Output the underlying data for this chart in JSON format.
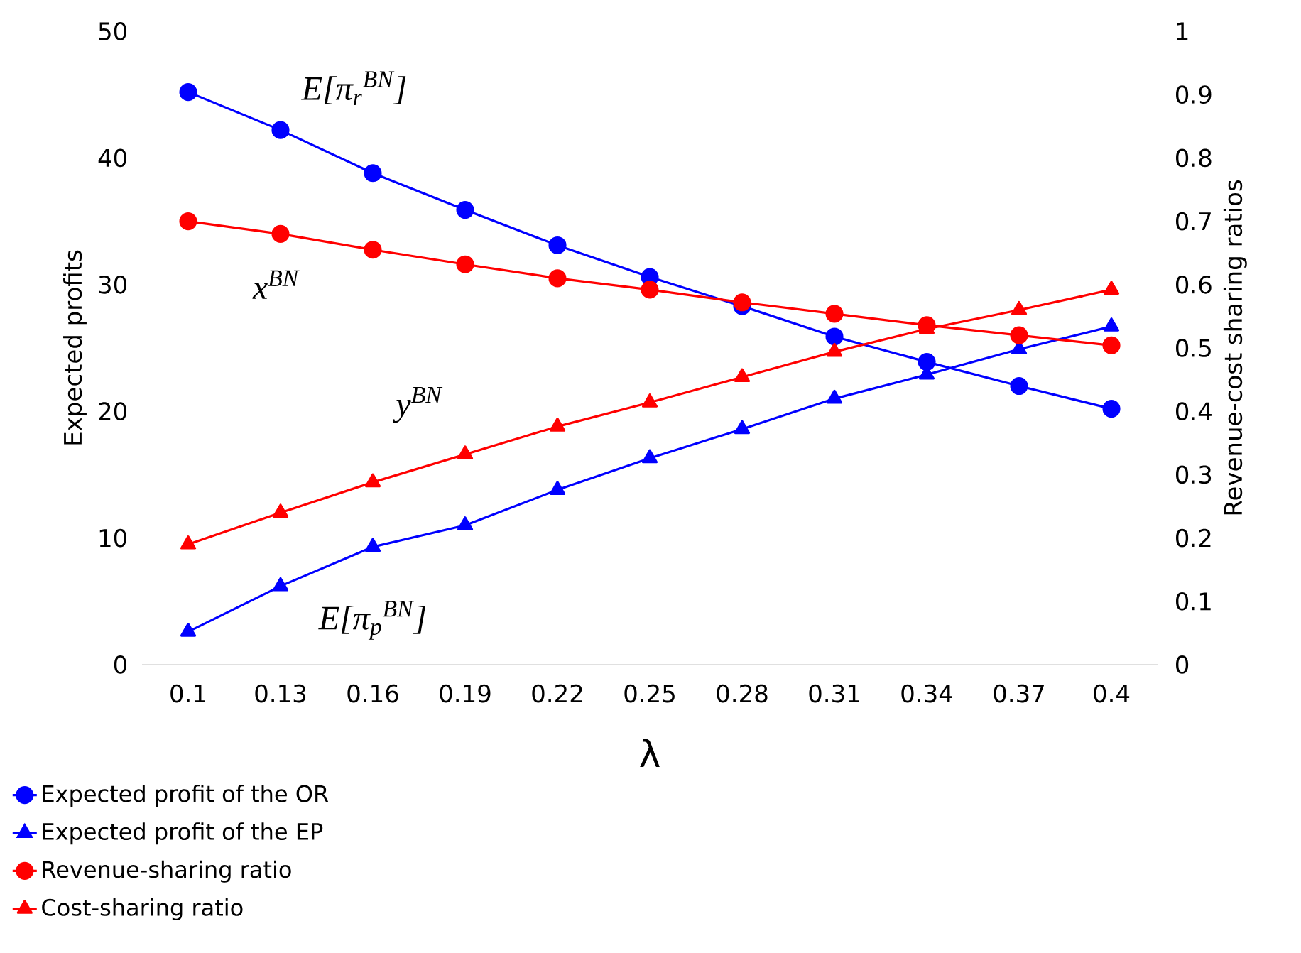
{
  "chart_data": {
    "type": "line",
    "xlabel": "λ",
    "ylabel": "Expected profits",
    "y2label": "Revenue-cost sharing ratios",
    "categories": [
      "0.1",
      "0.13",
      "0.16",
      "0.19",
      "0.22",
      "0.25",
      "0.28",
      "0.31",
      "0.34",
      "0.37",
      "0.4"
    ],
    "series": [
      {
        "name": "Expected profit of the OR",
        "color": "#0000ff",
        "marker": "circle",
        "axis": "y",
        "values": [
          45.2,
          42.2,
          38.8,
          35.9,
          33.1,
          30.6,
          28.3,
          25.9,
          23.9,
          22.0,
          20.2
        ]
      },
      {
        "name": "Expected profit of the EP",
        "color": "#0000ff",
        "marker": "triangle",
        "axis": "y",
        "values": [
          2.6,
          6.2,
          9.3,
          11.0,
          13.8,
          16.3,
          18.6,
          21.0,
          22.9,
          24.9,
          26.7
        ]
      },
      {
        "name": "Revenue-sharing ratio",
        "color": "#ff0000",
        "marker": "circle",
        "axis": "y2",
        "values": [
          0.7,
          0.68,
          0.655,
          0.632,
          0.61,
          0.592,
          0.572,
          0.554,
          0.536,
          0.52,
          0.504
        ]
      },
      {
        "name": "Cost-sharing ratio",
        "color": "#ff0000",
        "marker": "triangle",
        "axis": "y2",
        "values": [
          0.19,
          0.24,
          0.288,
          0.332,
          0.376,
          0.414,
          0.454,
          0.494,
          0.53,
          0.56,
          0.592
        ]
      }
    ],
    "ylim": [
      0,
      50
    ],
    "yticks": [
      0,
      10,
      20,
      30,
      40,
      50
    ],
    "y2lim": [
      0,
      1
    ],
    "y2ticks": [
      0,
      0.1,
      0.2,
      0.3,
      0.4,
      0.5,
      0.6,
      0.7,
      0.8,
      0.9,
      1
    ],
    "legend": "bottom left",
    "grid": false,
    "line_style": "solid",
    "annotations": [
      "E[π$_{r}$$^{BN}$]",
      "x$^{BN}$",
      "y$^{BN}$",
      "E[π$_{p}$$^{BN}$]"
    ]
  }
}
